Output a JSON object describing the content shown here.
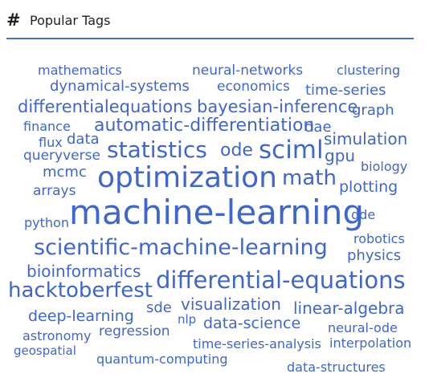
{
  "widget": {
    "title": "Popular Tags",
    "icon": "hash-icon"
  },
  "colors": {
    "tag": "#3f66cc",
    "accent": "#4a6fd8",
    "title": "#222222"
  },
  "tags": [
    {
      "text": "mathematics"
    },
    {
      "text": "neural-networks"
    },
    {
      "text": "clustering"
    },
    {
      "text": "dynamical-systems"
    },
    {
      "text": "economics"
    },
    {
      "text": "time-series"
    },
    {
      "text": "differentialequations"
    },
    {
      "text": "bayesian-inference"
    },
    {
      "text": "graph"
    },
    {
      "text": "finance"
    },
    {
      "text": "automatic-differentiation"
    },
    {
      "text": "dae"
    },
    {
      "text": "flux"
    },
    {
      "text": "data"
    },
    {
      "text": "simulation"
    },
    {
      "text": "queryverse"
    },
    {
      "text": "statistics"
    },
    {
      "text": "ode"
    },
    {
      "text": "sciml"
    },
    {
      "text": "gpu"
    },
    {
      "text": "mcmc"
    },
    {
      "text": "biology"
    },
    {
      "text": "optimization"
    },
    {
      "text": "math"
    },
    {
      "text": "arrays"
    },
    {
      "text": "plotting"
    },
    {
      "text": "python"
    },
    {
      "text": "machine-learning"
    },
    {
      "text": "dde"
    },
    {
      "text": "robotics"
    },
    {
      "text": "scientific-machine-learning"
    },
    {
      "text": "physics"
    },
    {
      "text": "bioinformatics"
    },
    {
      "text": "differential-equations"
    },
    {
      "text": "hacktoberfest"
    },
    {
      "text": "visualization"
    },
    {
      "text": "sde"
    },
    {
      "text": "linear-algebra"
    },
    {
      "text": "deep-learning"
    },
    {
      "text": "nlp"
    },
    {
      "text": "data-science"
    },
    {
      "text": "neural-ode"
    },
    {
      "text": "astronomy"
    },
    {
      "text": "regression"
    },
    {
      "text": "geospatial"
    },
    {
      "text": "time-series-analysis"
    },
    {
      "text": "interpolation"
    },
    {
      "text": "quantum-computing"
    },
    {
      "text": "data-structures"
    }
  ]
}
